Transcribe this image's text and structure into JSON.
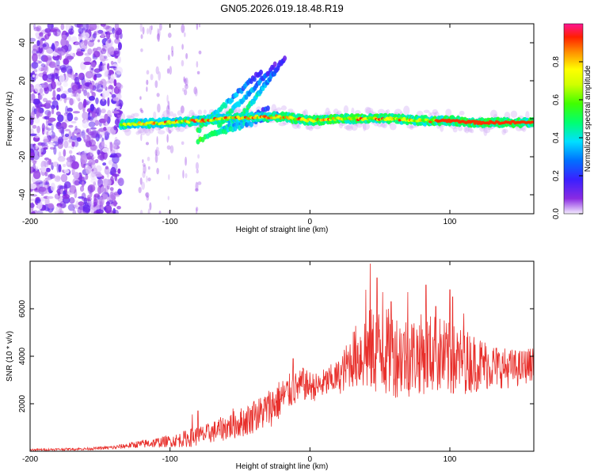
{
  "title": "GN05.2026.019.18.48.R19",
  "colors": {
    "snr_line": "#e8302c",
    "noise": "#7a2cff",
    "axis": "#000000"
  },
  "chart_data": [
    {
      "type": "heatmap",
      "name": "spectrogram",
      "xlabel": "Height of straight line (km)",
      "ylabel": "Frequency (Hz)",
      "xlim": [
        -200,
        160
      ],
      "ylim": [
        -50,
        50
      ],
      "xticks": [
        -200,
        -100,
        0,
        100
      ],
      "yticks": [
        -40,
        -20,
        0,
        20,
        40
      ],
      "colorbar": {
        "label": "Normalized spectral amplitude",
        "range": [
          0,
          1
        ],
        "ticks": [
          "0.0",
          "0.2",
          "0.4",
          "0.6",
          "0.8"
        ],
        "tick_values": [
          0,
          0.2,
          0.4,
          0.6,
          0.8
        ]
      },
      "main_band": [
        [
          -135,
          -3
        ],
        [
          -100,
          -2
        ],
        [
          -80,
          -1
        ],
        [
          -60,
          0
        ],
        [
          -40,
          1
        ],
        [
          -30,
          1
        ],
        [
          -20,
          1
        ],
        [
          0,
          -1
        ],
        [
          20,
          0
        ],
        [
          40,
          0
        ],
        [
          60,
          0
        ],
        [
          80,
          -1
        ],
        [
          100,
          -1
        ],
        [
          120,
          -2
        ],
        [
          140,
          -2
        ],
        [
          160,
          -2
        ]
      ],
      "rising_streaks": [
        [
          [
            -80,
            -6
          ],
          [
            -35,
            25
          ]
        ],
        [
          [
            -65,
            -3
          ],
          [
            -25,
            28
          ]
        ],
        [
          [
            -50,
            0
          ],
          [
            -18,
            32
          ]
        ]
      ],
      "falling_streaks": [
        [
          [
            -80,
            -12
          ],
          [
            -30,
            5
          ]
        ],
        [
          [
            -70,
            -8
          ],
          [
            -22,
            2
          ]
        ]
      ],
      "noise_region_x": [
        -200,
        -135
      ],
      "noise_columns_x": [
        -120,
        -115,
        -108,
        -100,
        -90,
        -80
      ]
    },
    {
      "type": "line",
      "name": "snr",
      "xlabel": "Height of straight line (km)",
      "ylabel": "SNR (10 * v/v)",
      "xlim": [
        -200,
        160
      ],
      "ylim": [
        0,
        8000
      ],
      "xticks": [
        -200,
        -100,
        0,
        100
      ],
      "yticks": [
        2000,
        4000,
        6000
      ],
      "trend": [
        [
          -200,
          60
        ],
        [
          -160,
          100
        ],
        [
          -140,
          160
        ],
        [
          -125,
          280
        ],
        [
          -110,
          360
        ],
        [
          -95,
          460
        ],
        [
          -85,
          580
        ],
        [
          -75,
          700
        ],
        [
          -65,
          900
        ],
        [
          -55,
          1100
        ],
        [
          -45,
          1300
        ],
        [
          -35,
          1600
        ],
        [
          -25,
          2000
        ],
        [
          -15,
          2500
        ],
        [
          -5,
          2800
        ],
        [
          5,
          2700
        ],
        [
          15,
          3000
        ],
        [
          22,
          3200
        ],
        [
          30,
          3900
        ],
        [
          40,
          4200
        ],
        [
          50,
          4200
        ],
        [
          60,
          4100
        ],
        [
          70,
          4000
        ],
        [
          80,
          4100
        ],
        [
          90,
          4100
        ],
        [
          100,
          3800
        ],
        [
          110,
          3800
        ],
        [
          120,
          3700
        ],
        [
          130,
          3600
        ],
        [
          140,
          3500
        ],
        [
          150,
          3500
        ],
        [
          160,
          3700
        ]
      ],
      "amplitude": [
        [
          -200,
          40
        ],
        [
          -150,
          60
        ],
        [
          -130,
          120
        ],
        [
          -115,
          200
        ],
        [
          -100,
          250
        ],
        [
          -85,
          400
        ],
        [
          -70,
          450
        ],
        [
          -55,
          600
        ],
        [
          -40,
          700
        ],
        [
          -25,
          900
        ],
        [
          -10,
          700
        ],
        [
          5,
          600
        ],
        [
          20,
          700
        ],
        [
          30,
          1200
        ],
        [
          40,
          1800
        ],
        [
          55,
          1900
        ],
        [
          75,
          1700
        ],
        [
          95,
          1700
        ],
        [
          115,
          1300
        ],
        [
          135,
          900
        ],
        [
          160,
          700
        ]
      ],
      "spikes": [
        [
          -84,
          1550
        ],
        [
          -80,
          1700
        ],
        [
          -55,
          1800
        ],
        [
          -40,
          2100
        ],
        [
          -30,
          2300
        ],
        [
          -12,
          3900
        ],
        [
          -5,
          3500
        ],
        [
          40,
          6800
        ],
        [
          43,
          7900
        ],
        [
          48,
          7300
        ],
        [
          52,
          6700
        ],
        [
          58,
          6300
        ],
        [
          70,
          6700
        ],
        [
          83,
          7000
        ],
        [
          90,
          6100
        ],
        [
          100,
          6800
        ],
        [
          102,
          6500
        ],
        [
          110,
          5800
        ]
      ]
    }
  ]
}
